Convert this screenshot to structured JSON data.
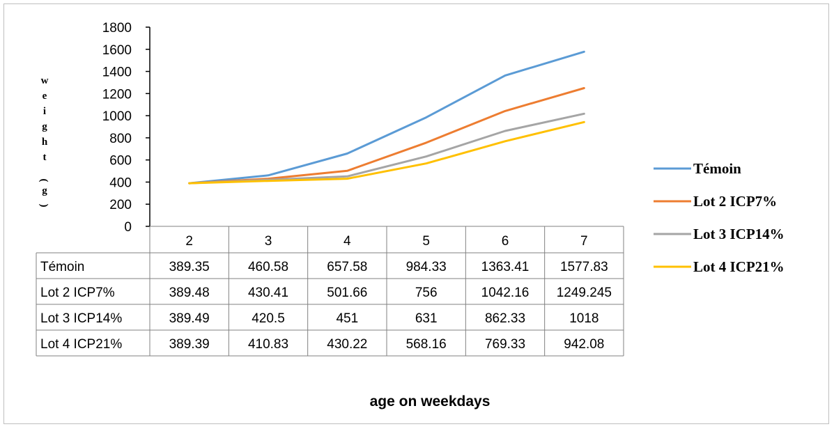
{
  "chart_data": {
    "type": "line",
    "title": "",
    "xlabel": "age on weekdays",
    "ylabel": "weight (g)",
    "categories": [
      "2",
      "3",
      "4",
      "5",
      "6",
      "7"
    ],
    "ylim": [
      0,
      1800
    ],
    "yticks": [
      "0",
      "200",
      "400",
      "600",
      "800",
      "1000",
      "1200",
      "1400",
      "1600",
      "1800"
    ],
    "grid": false,
    "legend_position": "right",
    "series": [
      {
        "name": "Témoin",
        "color": "#5b9bd5",
        "values": [
          389.35,
          460.58,
          657.58,
          984.33,
          1363.41,
          1577.83
        ],
        "labels": [
          "389.35",
          "460.58",
          "657.58",
          "984.33",
          "1363.41",
          "1577.83"
        ]
      },
      {
        "name": "Lot 2 ICP7%",
        "color": "#ed7d31",
        "values": [
          389.48,
          430.41,
          501.66,
          756,
          1042.16,
          1249.245
        ],
        "labels": [
          "389.48",
          "430.41",
          "501.66",
          "756",
          "1042.16",
          "1249.245"
        ]
      },
      {
        "name": "Lot 3 ICP14%",
        "color": "#a5a5a5",
        "values": [
          389.49,
          420.5,
          451,
          631,
          862.33,
          1018
        ],
        "labels": [
          "389.49",
          "420.5",
          "451",
          "631",
          "862.33",
          "1018"
        ]
      },
      {
        "name": "Lot 4 ICP21%",
        "color": "#ffc000",
        "values": [
          389.39,
          410.83,
          430.22,
          568.16,
          769.33,
          942.08
        ],
        "labels": [
          "389.39",
          "410.83",
          "430.22",
          "568.16",
          "769.33",
          "942.08"
        ]
      }
    ]
  }
}
